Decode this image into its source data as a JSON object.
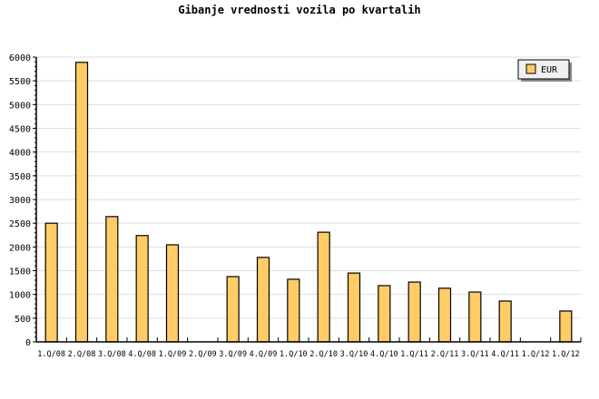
{
  "chart_data": {
    "type": "bar",
    "title": "Gibanje vrednosti vozila po kvartalih",
    "categories": [
      "1.Q/08",
      "2.Q/08",
      "3.Q/08",
      "4.Q/08",
      "1.Q/09",
      "2.Q/09",
      "3.Q/09",
      "4.Q/09",
      "1.Q/10",
      "2.Q/10",
      "3.Q/10",
      "4.Q/10",
      "1.Q/11",
      "2.Q/11",
      "3.Q/11",
      "4.Q/11",
      "1.Q/12",
      "1.Q/12"
    ],
    "series": [
      {
        "name": "EUR",
        "color": "#ffcc66",
        "values": [
          2500,
          5890,
          2640,
          2240,
          2045,
          0,
          1375,
          1780,
          1320,
          2310,
          1450,
          1185,
          1260,
          1130,
          1050,
          860,
          0,
          650
        ]
      }
    ],
    "yticks": [
      "0",
      "500",
      "1000",
      "1500",
      "2000",
      "2500",
      "3000",
      "3500",
      "4000",
      "4500",
      "5000",
      "5500",
      "6000"
    ],
    "ylim": [
      0,
      6000
    ],
    "grid": true,
    "legend": "top-right"
  }
}
